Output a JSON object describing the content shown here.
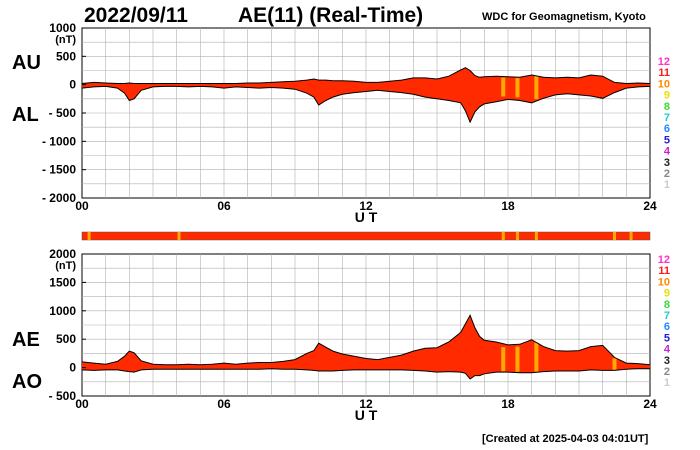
{
  "header": {
    "date": "2022/09/11",
    "title": "AE(11) (Real-Time)",
    "credit": "WDC for Geomagnetism, Kyoto"
  },
  "footer": {
    "created": "[Created at 2025-04-03 04:01UT]"
  },
  "station_count_legend": {
    "labels": [
      "12",
      "11",
      "10",
      "9",
      "8",
      "7",
      "6",
      "5",
      "4",
      "3",
      "2",
      "1"
    ],
    "colors": [
      "#ff33cc",
      "#ff1a1a",
      "#ff8800",
      "#e8e000",
      "#33dd33",
      "#22cccc",
      "#2288ff",
      "#2222cc",
      "#cc22cc",
      "#222222",
      "#888888",
      "#cccccc"
    ]
  },
  "colors": {
    "fill_main": "#ff2a00",
    "fill_low_count": "#ffaa00",
    "grid": "#b0b0b0"
  },
  "chart_data": [
    {
      "id": "au_al",
      "type": "area",
      "series_labels": {
        "upper": "AU",
        "lower": "AL"
      },
      "ylabel_unit": "(nT)",
      "xlabel": "U T",
      "xlim": [
        0,
        24
      ],
      "ylim": [
        -2000,
        1000
      ],
      "yticks": [
        1000,
        500,
        0,
        -500,
        -1000,
        -1500,
        -2000
      ],
      "ytick_labels": [
        "1000",
        "500",
        "0",
        "- 500",
        "- 1000",
        "- 1500",
        "- 2000"
      ],
      "xticks": [
        0,
        6,
        12,
        18,
        24
      ],
      "xtick_labels": [
        "00",
        "06",
        "12",
        "18",
        "24"
      ],
      "grid": true,
      "x": [
        0,
        0.5,
        1,
        1.5,
        1.8,
        2.0,
        2.2,
        2.5,
        3,
        3.5,
        4,
        4.5,
        5,
        5.5,
        6,
        6.5,
        7,
        7.5,
        8,
        8.5,
        9,
        9.5,
        9.8,
        10,
        10.3,
        10.6,
        11,
        11.5,
        12,
        12.5,
        13,
        13.5,
        14,
        14.5,
        15,
        15.5,
        16,
        16.2,
        16.4,
        16.6,
        16.8,
        17,
        17.5,
        18,
        18.5,
        19,
        19.5,
        20,
        20.5,
        21,
        21.5,
        22,
        22.5,
        23,
        23.5,
        24
      ],
      "upper": [
        20,
        40,
        30,
        20,
        20,
        30,
        20,
        20,
        20,
        20,
        20,
        20,
        20,
        20,
        20,
        20,
        30,
        30,
        40,
        50,
        60,
        80,
        100,
        80,
        80,
        70,
        70,
        60,
        40,
        40,
        60,
        80,
        120,
        120,
        100,
        150,
        260,
        300,
        250,
        160,
        130,
        140,
        150,
        140,
        130,
        170,
        130,
        120,
        130,
        120,
        170,
        150,
        40,
        20,
        30,
        20
      ],
      "lower": [
        -60,
        -40,
        -30,
        -60,
        -150,
        -280,
        -250,
        -100,
        -40,
        -30,
        -30,
        -40,
        -30,
        -40,
        -60,
        -40,
        -50,
        -60,
        -50,
        -60,
        -80,
        -150,
        -220,
        -360,
        -280,
        -220,
        -170,
        -140,
        -120,
        -100,
        -120,
        -140,
        -170,
        -220,
        -250,
        -280,
        -320,
        -460,
        -660,
        -480,
        -390,
        -340,
        -300,
        -260,
        -280,
        -320,
        -240,
        -180,
        -160,
        -180,
        -200,
        -240,
        -140,
        -60,
        -40,
        -30
      ],
      "low_count_x": [
        17.8,
        18.4,
        19.2
      ]
    },
    {
      "id": "ae_ao",
      "type": "area",
      "series_labels": {
        "upper": "AE",
        "lower": "AO"
      },
      "ylabel_unit": "(nT)",
      "xlabel": "U T",
      "xlim": [
        0,
        24
      ],
      "ylim": [
        -500,
        2000
      ],
      "yticks": [
        2000,
        1500,
        1000,
        500,
        0,
        -500
      ],
      "ytick_labels": [
        "2000",
        "1500",
        "1000",
        "500",
        "0",
        "- 500"
      ],
      "xticks": [
        0,
        6,
        12,
        18,
        24
      ],
      "xtick_labels": [
        "00",
        "06",
        "12",
        "18",
        "24"
      ],
      "grid": true,
      "x": [
        0,
        0.5,
        1,
        1.5,
        1.8,
        2.0,
        2.2,
        2.5,
        3,
        3.5,
        4,
        4.5,
        5,
        5.5,
        6,
        6.5,
        7,
        7.5,
        8,
        8.5,
        9,
        9.5,
        9.8,
        10,
        10.3,
        10.6,
        11,
        11.5,
        12,
        12.5,
        13,
        13.5,
        14,
        14.5,
        15,
        15.5,
        16,
        16.2,
        16.4,
        16.6,
        16.8,
        17,
        17.5,
        18,
        18.5,
        19,
        19.5,
        20,
        20.5,
        21,
        21.5,
        22,
        22.5,
        23,
        23.5,
        24
      ],
      "upper": [
        100,
        80,
        60,
        110,
        200,
        290,
        260,
        120,
        60,
        50,
        50,
        60,
        50,
        60,
        80,
        60,
        80,
        90,
        90,
        110,
        140,
        250,
        300,
        430,
        360,
        290,
        240,
        200,
        160,
        140,
        180,
        220,
        290,
        340,
        350,
        450,
        620,
        770,
        920,
        700,
        550,
        480,
        450,
        400,
        410,
        490,
        370,
        300,
        290,
        300,
        370,
        390,
        180,
        80,
        70,
        50
      ],
      "lower": [
        -40,
        -50,
        -40,
        -40,
        -60,
        -70,
        -80,
        -40,
        -30,
        -30,
        -30,
        -30,
        -30,
        -30,
        -30,
        -30,
        -30,
        -30,
        -20,
        -30,
        -30,
        -40,
        -50,
        -60,
        -60,
        -60,
        -50,
        -40,
        -40,
        -40,
        -40,
        -40,
        -50,
        -60,
        -80,
        -70,
        -80,
        -100,
        -200,
        -140,
        -140,
        -110,
        -80,
        -80,
        -90,
        -90,
        -70,
        -60,
        -60,
        -60,
        -40,
        -50,
        -50,
        -30,
        -20,
        -20
      ],
      "low_count_x": [
        17.8,
        18.4,
        19.2,
        22.5
      ]
    }
  ]
}
